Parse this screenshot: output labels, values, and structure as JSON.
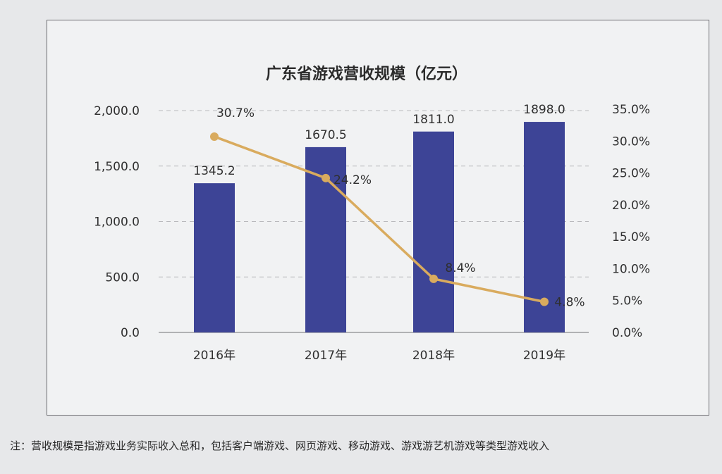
{
  "chart_data": {
    "type": "bar",
    "title": "广东省游戏营收规模（亿元）",
    "categories": [
      "2016年",
      "2017年",
      "2018年",
      "2019年"
    ],
    "series": [
      {
        "type": "bar",
        "values": [
          1345.2,
          1670.5,
          1811.0,
          1898.0
        ],
        "labels": [
          "1345.2",
          "1670.5",
          "1811.0",
          "1898.0"
        ],
        "color": "#3d4496"
      },
      {
        "type": "line",
        "axis": "right",
        "values": [
          30.7,
          24.2,
          8.4,
          4.8
        ],
        "labels": [
          "30.7%",
          "24.2%",
          "8.4%",
          "4.8%"
        ],
        "color": "#d9ab5e"
      }
    ],
    "y_left": {
      "range": [
        0,
        2000
      ],
      "ticks": [
        "0.0",
        "500.0",
        "1,000.0",
        "1,500.0",
        "2,000.0"
      ]
    },
    "y_right": {
      "range": [
        0,
        35
      ],
      "ticks": [
        "0.0%",
        "5.0%",
        "10.0%",
        "15.0%",
        "20.0%",
        "25.0%",
        "30.0%",
        "35.0%"
      ]
    },
    "grid": true,
    "legend": "none"
  },
  "note": "注：营收规模是指游戏业务实际收入总和，包括客户端游戏、网页游戏、移动游戏、游戏游艺机游戏等类型游戏收入"
}
